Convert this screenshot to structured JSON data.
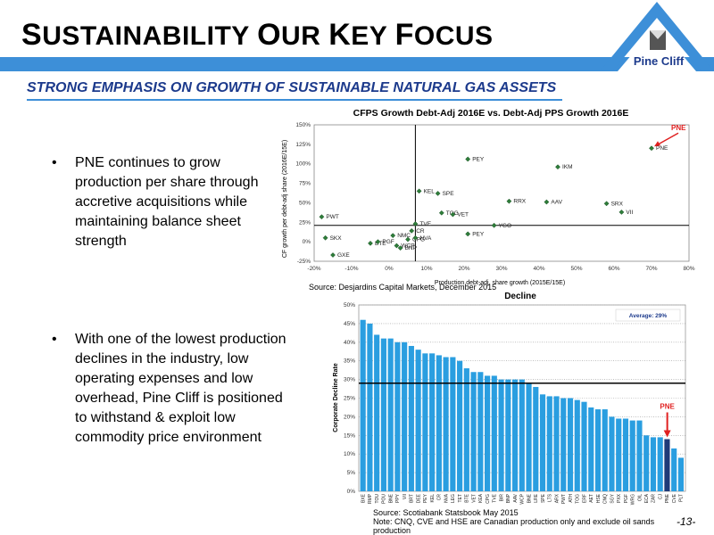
{
  "slide": {
    "title_first": "S",
    "title_rest1": "USTAINABILITY ",
    "title_o": "O",
    "title_rest2": "UR ",
    "title_k": "K",
    "title_rest3": "EY ",
    "title_f": "F",
    "title_rest4": "OCUS",
    "subtitle": "STRONG EMPHASIS ON GROWTH OF SUSTAINABLE NATURAL GAS ASSETS",
    "logo_text": "Pine Cliff",
    "page_number": "-13-",
    "colors": {
      "banner": "#3d8fd8",
      "subtitle": "#1c3a8c",
      "accent": "#e02020",
      "bar": "#2a9ee0",
      "pne_bar": "#1f3a78"
    }
  },
  "bullets": [
    {
      "marker": "•",
      "text": "PNE continues to grow production per share through accretive acquisitions while maintaining balance sheet strength"
    },
    {
      "marker": "•",
      "text": "With one of the lowest production declines in the industry, low operating expenses and low overhead, Pine Cliff is positioned to withstand & exploit low commodity price environment"
    }
  ],
  "chart_data": [
    {
      "type": "scatter",
      "title": "CFPS Growth Debt-Adj 2016E vs. Debt-Adj PPS Growth 2016E",
      "xlabel": "Production debt-adj. share growth (2015E/15E)",
      "ylabel": "CF growth per debt-adj share (2016E/15E)",
      "xlim": [
        -20,
        80
      ],
      "ylim": [
        -25,
        150
      ],
      "xticks": [
        "-20%",
        "-10%",
        "0%",
        "10%",
        "20%",
        "30%",
        "40%",
        "50%",
        "60%",
        "70%",
        "80%"
      ],
      "yticks": [
        "-25%",
        "0%",
        "25%",
        "50%",
        "75%",
        "100%",
        "125%",
        "150%"
      ],
      "ref_x": 7,
      "ref_y": 21,
      "highlight_label": "PNE",
      "points": [
        {
          "label": "PWT",
          "x": -18,
          "y": 32
        },
        {
          "label": "SKX",
          "x": -17,
          "y": 5
        },
        {
          "label": "GXE",
          "x": -15,
          "y": -17
        },
        {
          "label": "BTE",
          "x": -5,
          "y": -2
        },
        {
          "label": "PGF",
          "x": -3,
          "y": 0
        },
        {
          "label": "NMC",
          "x": 1,
          "y": 8
        },
        {
          "label": "BNP",
          "x": 3,
          "y": -8
        },
        {
          "label": "CPG",
          "x": 5,
          "y": 3
        },
        {
          "label": "WCP",
          "x": 2,
          "y": -5
        },
        {
          "label": "KEL",
          "x": 8,
          "y": 65
        },
        {
          "label": "TVE",
          "x": 7,
          "y": 23
        },
        {
          "label": "CR",
          "x": 6,
          "y": 14
        },
        {
          "label": "NVA",
          "x": 7,
          "y": 5
        },
        {
          "label": "SPE",
          "x": 13,
          "y": 62
        },
        {
          "label": "TOG",
          "x": 14,
          "y": 37
        },
        {
          "label": "VET",
          "x": 17,
          "y": 35
        },
        {
          "label": "PEY",
          "x": 21,
          "y": 106
        },
        {
          "label": "PEY",
          "x": 21,
          "y": 10
        },
        {
          "label": "YGO",
          "x": 28,
          "y": 21
        },
        {
          "label": "RRX",
          "x": 32,
          "y": 52
        },
        {
          "label": "AAV",
          "x": 42,
          "y": 51
        },
        {
          "label": "IKM",
          "x": 45,
          "y": 96
        },
        {
          "label": "SRX",
          "x": 58,
          "y": 49
        },
        {
          "label": "VII",
          "x": 62,
          "y": 38
        },
        {
          "label": "PNE",
          "x": 70,
          "y": 120
        }
      ],
      "source": "Source: Desjardins Capital Markets, December 2015"
    },
    {
      "type": "bar",
      "title": "Decline",
      "ylabel": "Corporate Decline Rate",
      "ylim": [
        0,
        50
      ],
      "yticks": [
        "0%",
        "5%",
        "10%",
        "15%",
        "20%",
        "25%",
        "30%",
        "35%",
        "40%",
        "45%",
        "50%"
      ],
      "average_label": "Average: 29%",
      "average": 29,
      "highlight_label": "PNE",
      "highlight_category": "PNE",
      "categories": [
        "BXE",
        "RMP",
        "TOU",
        "POU",
        "BNE",
        "PPY",
        "VII",
        "BRT",
        "DEE",
        "PEY",
        "KEL",
        "CR",
        "NVA",
        "LEG",
        "TET",
        "BTE",
        "VET",
        "KEA",
        "CPG",
        "TVE",
        "BIR",
        "BNP",
        "AAV",
        "WCP",
        "BNE",
        "LRE",
        "SPE",
        "LTS",
        "ARX",
        "PWT",
        "ATH",
        "TOG",
        "ERF",
        "AET",
        "HSE",
        "CNQ",
        "SGY",
        "PXX",
        "PGF",
        "WRG",
        "OIL",
        "ECA",
        "ZAR",
        "CJ",
        "PNE",
        "CVE",
        "PLT"
      ],
      "values": [
        46,
        45,
        42,
        41,
        41,
        40,
        40,
        39,
        38,
        37,
        37,
        36.5,
        36,
        36,
        35,
        33,
        32,
        32,
        31,
        31,
        30,
        30,
        30,
        30,
        29,
        28,
        26,
        25.5,
        25.5,
        25,
        25,
        24.5,
        24,
        22.5,
        22,
        22,
        20,
        19.5,
        19.5,
        19,
        19,
        15,
        14.5,
        14.5,
        14,
        11.5,
        9
      ],
      "source": "Source: Scotiabank Statsbook May 2015",
      "note": "Note: CNQ, CVE and HSE are Canadian production only and exclude oil sands production"
    }
  ]
}
